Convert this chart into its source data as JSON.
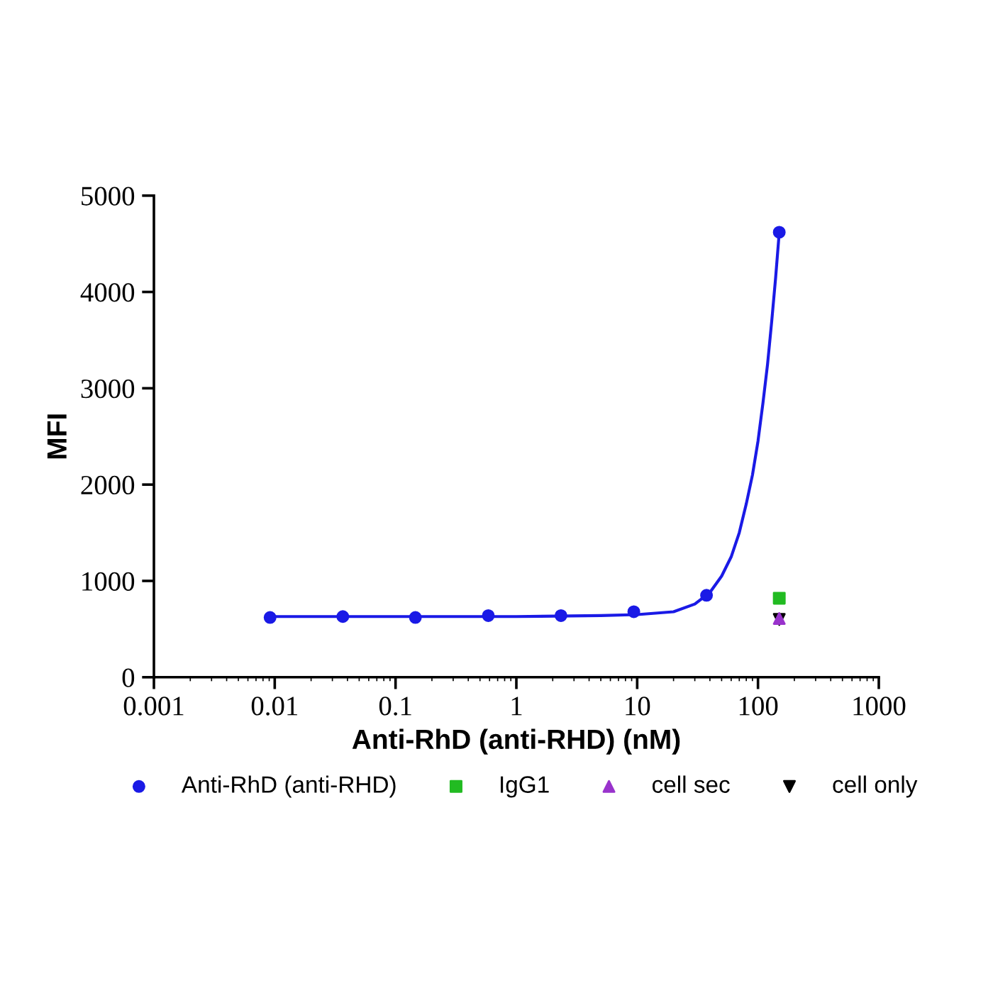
{
  "chart_data": {
    "type": "scatter",
    "xlabel": "Anti-RhD (anti-RHD) (nM)",
    "ylabel": "MFI",
    "log": "x",
    "xlim": [
      0.001,
      1000
    ],
    "xticks": [
      0.001,
      0.01,
      0.1,
      1,
      10,
      100,
      1000
    ],
    "ylim": [
      0,
      5000
    ],
    "yticks": [
      0,
      1000,
      2000,
      3000,
      4000,
      5000
    ],
    "grid": false,
    "legend": "bottom",
    "series": [
      {
        "name": "Anti-RhD (anti-RHD)",
        "marker": "circle",
        "color": "#1a1ae6",
        "x": [
          0.00915,
          0.0366,
          0.146,
          0.586,
          2.34,
          9.38,
          37.5,
          150
        ],
        "values": [
          620,
          630,
          620,
          640,
          640,
          680,
          850,
          4620
        ]
      },
      {
        "type": "line",
        "marker": "none",
        "color": "#1a1ae6",
        "x": [
          0.00915,
          0.1,
          1,
          5,
          10,
          20,
          30,
          40,
          50,
          60,
          70,
          80,
          90,
          100,
          110,
          120,
          130,
          140,
          150
        ],
        "values": [
          630,
          630,
          630,
          640,
          650,
          680,
          760,
          880,
          1050,
          1250,
          1500,
          1800,
          2100,
          2450,
          2850,
          3250,
          3700,
          4150,
          4620
        ]
      },
      {
        "name": "IgG1",
        "marker": "square",
        "color": "#22bb22",
        "x": [
          150
        ],
        "values": [
          820
        ]
      },
      {
        "name": "cell sec",
        "marker": "triangle",
        "color": "#9933cc",
        "x": [
          150
        ],
        "values": [
          610
        ]
      },
      {
        "name": "cell only",
        "marker": "triangle_down",
        "color": "#000000",
        "x": [
          150
        ],
        "values": [
          600
        ]
      }
    ]
  }
}
